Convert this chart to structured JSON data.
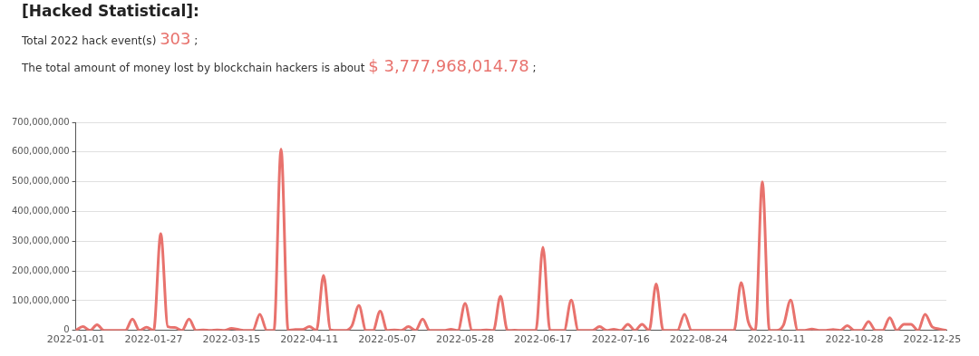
{
  "chart_data": {
    "type": "line",
    "title": "[Hacked Statistical]:",
    "subtitle": "Total 2022 hack event(s) 303 ;",
    "annotations": [
      "The total amount of money lost by blockchain hackers is about $ 3,777,968,014.78 ;"
    ],
    "categories": [
      "2022-01-01",
      null,
      null,
      null,
      null,
      null,
      null,
      null,
      null,
      null,
      null,
      "2022-01-27",
      null,
      null,
      null,
      null,
      null,
      null,
      null,
      null,
      null,
      null,
      "2022-03-15",
      null,
      null,
      null,
      null,
      null,
      null,
      null,
      null,
      null,
      null,
      "2022-04-11",
      null,
      null,
      null,
      null,
      null,
      null,
      null,
      null,
      null,
      null,
      "2022-05-07",
      null,
      null,
      null,
      null,
      null,
      null,
      null,
      null,
      null,
      null,
      "2022-05-28",
      null,
      null,
      null,
      null,
      null,
      null,
      null,
      null,
      null,
      null,
      "2022-06-17",
      null,
      null,
      null,
      null,
      null,
      null,
      null,
      null,
      null,
      null,
      "2022-07-16",
      null,
      null,
      null,
      null,
      null,
      null,
      null,
      null,
      null,
      null,
      "2022-08-24",
      null,
      null,
      null,
      null,
      null,
      null,
      null,
      null,
      null,
      null,
      "2022-10-11",
      null,
      null,
      null,
      null,
      null,
      null,
      null,
      null,
      null,
      null,
      "2022-10-28",
      null,
      null,
      null,
      null,
      null,
      null,
      null,
      null,
      null,
      null,
      "2022-12-25",
      null,
      null
    ],
    "series": [
      {
        "color": "#e8726d",
        "values": [
          0,
          13000000,
          0,
          19000000,
          0,
          0,
          0,
          0,
          38000000,
          0,
          11000000,
          0,
          325000000,
          13000000,
          10000000,
          0,
          38000000,
          0,
          2000000,
          0,
          2000000,
          0,
          7000000,
          3000000,
          0,
          0,
          54000000,
          0,
          0,
          610000000,
          0,
          3000000,
          3000000,
          13000000,
          0,
          185000000,
          2000000,
          0,
          0,
          15000000,
          84000000,
          0,
          0,
          65000000,
          0,
          2000000,
          0,
          13000000,
          0,
          38000000,
          0,
          0,
          0,
          4000000,
          0,
          91000000,
          0,
          0,
          2000000,
          0,
          115000000,
          0,
          1000000,
          0,
          0,
          0,
          280000000,
          0,
          0,
          0,
          102000000,
          0,
          0,
          0,
          13000000,
          0,
          4000000,
          0,
          21000000,
          0,
          21000000,
          0,
          156000000,
          0,
          0,
          0,
          54000000,
          0,
          0,
          0,
          0,
          0,
          0,
          0,
          161000000,
          30000000,
          0,
          500000000,
          0,
          0,
          19000000,
          102000000,
          0,
          0,
          5000000,
          0,
          0,
          3000000,
          0,
          16000000,
          0,
          0,
          30000000,
          0,
          0,
          43000000,
          0,
          21000000,
          21000000,
          0,
          54000000,
          12000000,
          5000000,
          0
        ]
      }
    ],
    "ylim": [
      0,
      700000000
    ],
    "yticks": [
      {
        "value": 0,
        "label": "0"
      },
      {
        "value": 100000000,
        "label": "100,000,000"
      },
      {
        "value": 200000000,
        "label": "200,000,000"
      },
      {
        "value": 300000000,
        "label": "300,000,000"
      },
      {
        "value": 400000000,
        "label": "400,000,000"
      },
      {
        "value": 500000000,
        "label": "500,000,000"
      },
      {
        "value": 600000000,
        "label": "600,000,000"
      },
      {
        "value": 700000000,
        "label": "700,000,000"
      }
    ],
    "grid": "y",
    "marker": "none",
    "legend": false
  }
}
